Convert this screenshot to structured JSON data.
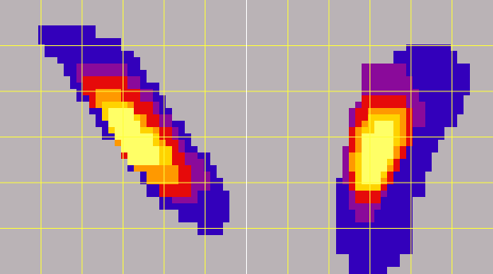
{
  "chart_data": [
    {
      "type": "heatmap",
      "title": "",
      "xlabel": "",
      "ylabel": "",
      "grid": true,
      "legend": "none",
      "density_levels": [
        1,
        2,
        3,
        4,
        5,
        6
      ],
      "bands": [
        {
          "level": 1,
          "rows": [
            [
              -2.0,
              -0.7
            ],
            [
              -1.8,
              -0.1
            ],
            [
              -1.6,
              0.2
            ],
            [
              -1.4,
              0.4
            ],
            [
              -1.2,
              0.55
            ],
            [
              -1.0,
              0.8
            ],
            [
              -0.8,
              1.0
            ],
            [
              -0.6,
              1.15
            ],
            [
              -0.4,
              1.35
            ],
            [
              -0.2,
              1.55
            ],
            [
              0.0,
              1.75
            ],
            [
              0.2,
              2.0
            ],
            [
              0.45,
              2.2
            ],
            [
              0.7,
              2.35
            ],
            [
              1.0,
              2.5
            ],
            [
              1.4,
              2.45
            ],
            [
              1.9,
              2.3
            ]
          ],
          "y_start": 2.4,
          "y_step": -0.26
        },
        {
          "level": 2,
          "rows": [
            [
              -1.0,
              0.1
            ],
            [
              -0.9,
              0.35
            ],
            [
              -0.7,
              0.6
            ],
            [
              -0.5,
              0.85
            ],
            [
              -0.3,
              1.05
            ],
            [
              -0.1,
              1.3
            ],
            [
              0.1,
              1.5
            ],
            [
              0.35,
              1.7
            ],
            [
              0.6,
              1.9
            ],
            [
              0.9,
              2.0
            ],
            [
              1.2,
              1.8
            ]
          ],
          "y_start": 1.55,
          "y_step": -0.27
        },
        {
          "level": 3,
          "rows": [
            [
              -0.9,
              0.0
            ],
            [
              -0.7,
              0.3
            ],
            [
              -0.5,
              0.6
            ],
            [
              -0.3,
              0.8
            ],
            [
              -0.1,
              1.05
            ],
            [
              0.1,
              1.25
            ],
            [
              0.35,
              1.45
            ],
            [
              0.6,
              1.6
            ],
            [
              0.9,
              1.55
            ]
          ],
          "y_start": 1.25,
          "y_step": -0.28
        },
        {
          "level": 4,
          "rows": [
            [
              -0.6,
              -0.05
            ],
            [
              -0.45,
              0.25
            ],
            [
              -0.25,
              0.5
            ],
            [
              -0.05,
              0.75
            ],
            [
              0.15,
              0.95
            ],
            [
              0.35,
              1.15
            ],
            [
              0.6,
              1.3
            ]
          ],
          "y_start": 0.95,
          "y_step": -0.27
        },
        {
          "level": 5,
          "rows": [
            [
              -0.45,
              0.05
            ],
            [
              -0.3,
              0.35
            ],
            [
              -0.1,
              0.6
            ],
            [
              0.05,
              0.85
            ],
            [
              0.25,
              1.05
            ]
          ],
          "y_start": 0.75,
          "y_step": -0.27
        },
        {
          "level": 6,
          "rows": [
            [
              -0.3,
              0.15
            ],
            [
              -0.15,
              0.4
            ],
            [
              0.0,
              0.6
            ],
            [
              0.15,
              0.8
            ]
          ],
          "y_start": 0.6,
          "y_step": -0.27
        }
      ]
    },
    {
      "type": "heatmap",
      "title": "",
      "xlabel": "",
      "ylabel": "",
      "grid": true,
      "legend": "none",
      "density_levels": [
        1,
        2,
        3,
        4,
        5,
        6
      ],
      "bands": [
        {
          "level": 1,
          "rows": [
            [
              0.9,
              1.9
            ],
            [
              0.6,
              2.1
            ],
            [
              0.3,
              2.3
            ],
            [
              0.1,
              2.3
            ],
            [
              -0.1,
              2.2
            ],
            [
              -0.2,
              2.2
            ],
            [
              -0.3,
              2.0
            ],
            [
              -0.4,
              1.8
            ],
            [
              -0.5,
              1.6
            ],
            [
              -0.55,
              1.5
            ],
            [
              -0.6,
              1.4
            ],
            [
              -0.65,
              1.3
            ],
            [
              -0.7,
              1.2
            ],
            [
              -0.75,
              1.0
            ],
            [
              -0.8,
              0.9
            ],
            [
              -0.8,
              0.9
            ],
            [
              -0.8,
              0.9
            ],
            [
              -0.7,
              0.9
            ],
            [
              -0.5,
              0.7
            ],
            [
              -0.4,
              0.4
            ]
          ],
          "y_start": 2.0,
          "y_step": -0.25
        },
        {
          "level": 2,
          "rows": [
            [
              -0.05,
              0.8
            ],
            [
              -0.15,
              0.9
            ],
            [
              -0.2,
              1.1
            ],
            [
              -0.3,
              1.2
            ],
            [
              -0.4,
              1.2
            ],
            [
              -0.45,
              1.0
            ],
            [
              -0.5,
              0.85
            ],
            [
              -0.55,
              0.7
            ],
            [
              -0.55,
              0.55
            ],
            [
              -0.55,
              0.4
            ],
            [
              -0.5,
              0.3
            ],
            [
              -0.4,
              0.2
            ],
            [
              -0.3,
              0.05
            ]
          ],
          "y_start": 1.5,
          "y_step": -0.25
        },
        {
          "level": 3,
          "rows": [
            [
              -0.2,
              0.85
            ],
            [
              -0.3,
              0.95
            ],
            [
              -0.35,
              0.95
            ],
            [
              -0.4,
              0.9
            ],
            [
              -0.45,
              0.75
            ],
            [
              -0.5,
              0.6
            ],
            [
              -0.5,
              0.45
            ],
            [
              -0.45,
              0.3
            ],
            [
              -0.35,
              0.15
            ]
          ],
          "y_start": 0.85,
          "y_step": -0.25
        },
        {
          "level": 4,
          "rows": [
            [
              0.0,
              0.75
            ],
            [
              -0.2,
              0.8
            ],
            [
              -0.3,
              0.75
            ],
            [
              -0.35,
              0.65
            ],
            [
              -0.4,
              0.5
            ],
            [
              -0.35,
              0.35
            ],
            [
              -0.3,
              0.2
            ]
          ],
          "y_start": 0.6,
          "y_step": -0.25
        },
        {
          "level": 5,
          "rows": [
            [
              0.1,
              0.65
            ],
            [
              -0.1,
              0.65
            ],
            [
              -0.2,
              0.55
            ],
            [
              -0.3,
              0.45
            ],
            [
              -0.3,
              0.3
            ],
            [
              -0.25,
              0.15
            ]
          ],
          "y_start": 0.4,
          "y_step": -0.25
        },
        {
          "level": 6,
          "rows": [
            [
              0.15,
              0.5
            ],
            [
              -0.05,
              0.5
            ],
            [
              -0.15,
              0.45
            ],
            [
              -0.2,
              0.3
            ],
            [
              -0.2,
              0.2
            ]
          ],
          "y_start": 0.3,
          "y_step": -0.25
        }
      ]
    }
  ],
  "style": {
    "background": "#bab3b6",
    "grid_color": "#ffff3a",
    "level_colors": [
      "#3300bb",
      "#8a0a9a",
      "#e60a0a",
      "#ff9900",
      "#ffd300",
      "#ffff66"
    ]
  }
}
